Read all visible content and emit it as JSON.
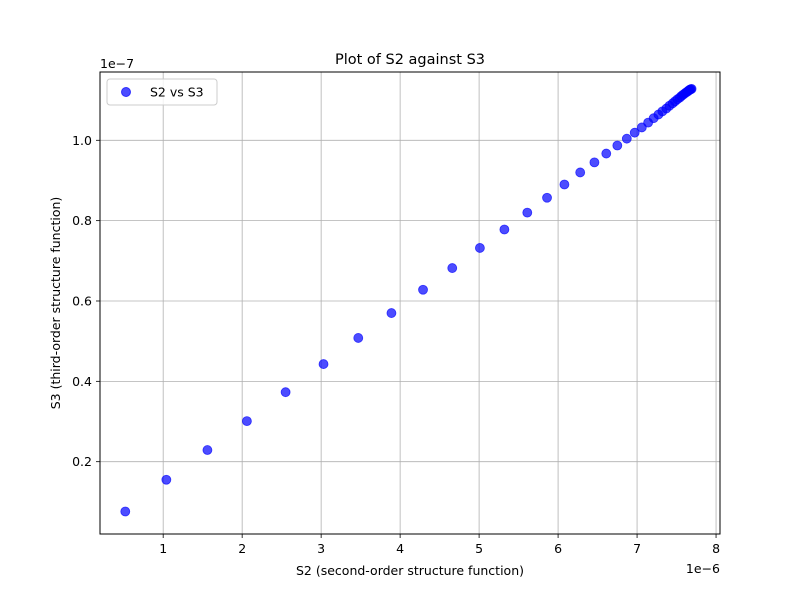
{
  "chart_data": {
    "type": "scatter",
    "title": "Plot of S2 against S3",
    "xlabel": "S2 (second-order structure function)",
    "ylabel": "S3 (third-order structure function)",
    "x_offset_text": "1e−6",
    "y_offset_text": "1e−7",
    "x_scale": 1e-06,
    "y_scale": 1e-07,
    "xlim": [
      0.2,
      8.05
    ],
    "ylim": [
      0.02,
      1.17
    ],
    "x_ticks": [
      1,
      2,
      3,
      4,
      5,
      6,
      7,
      8
    ],
    "x_tick_labels": [
      "1",
      "2",
      "3",
      "4",
      "5",
      "6",
      "7",
      "8"
    ],
    "y_ticks": [
      0.2,
      0.4,
      0.6,
      0.8,
      1.0
    ],
    "y_tick_labels": [
      "0.2",
      "0.4",
      "0.6",
      "0.8",
      "1.0"
    ],
    "grid": true,
    "legend_position": "top-left",
    "series": [
      {
        "name": "S2 vs S3",
        "color": "#0000ff",
        "opacity": 0.7,
        "x": [
          0.52,
          1.04,
          1.56,
          2.06,
          2.55,
          3.03,
          3.47,
          3.89,
          4.29,
          4.66,
          5.01,
          5.32,
          5.61,
          5.86,
          6.08,
          6.28,
          6.46,
          6.61,
          6.75,
          6.87,
          6.97,
          7.06,
          7.14,
          7.21,
          7.27,
          7.32,
          7.37,
          7.41,
          7.45,
          7.48,
          7.51,
          7.54,
          7.56,
          7.58,
          7.6,
          7.62,
          7.635,
          7.65,
          7.66,
          7.67,
          7.68,
          7.69
        ],
        "y": [
          0.076,
          0.155,
          0.229,
          0.301,
          0.373,
          0.443,
          0.508,
          0.57,
          0.628,
          0.682,
          0.732,
          0.778,
          0.82,
          0.857,
          0.89,
          0.92,
          0.945,
          0.967,
          0.987,
          1.004,
          1.019,
          1.032,
          1.044,
          1.055,
          1.064,
          1.072,
          1.079,
          1.086,
          1.092,
          1.097,
          1.102,
          1.106,
          1.11,
          1.113,
          1.116,
          1.119,
          1.121,
          1.123,
          1.125,
          1.126,
          1.127,
          1.128
        ]
      }
    ]
  }
}
